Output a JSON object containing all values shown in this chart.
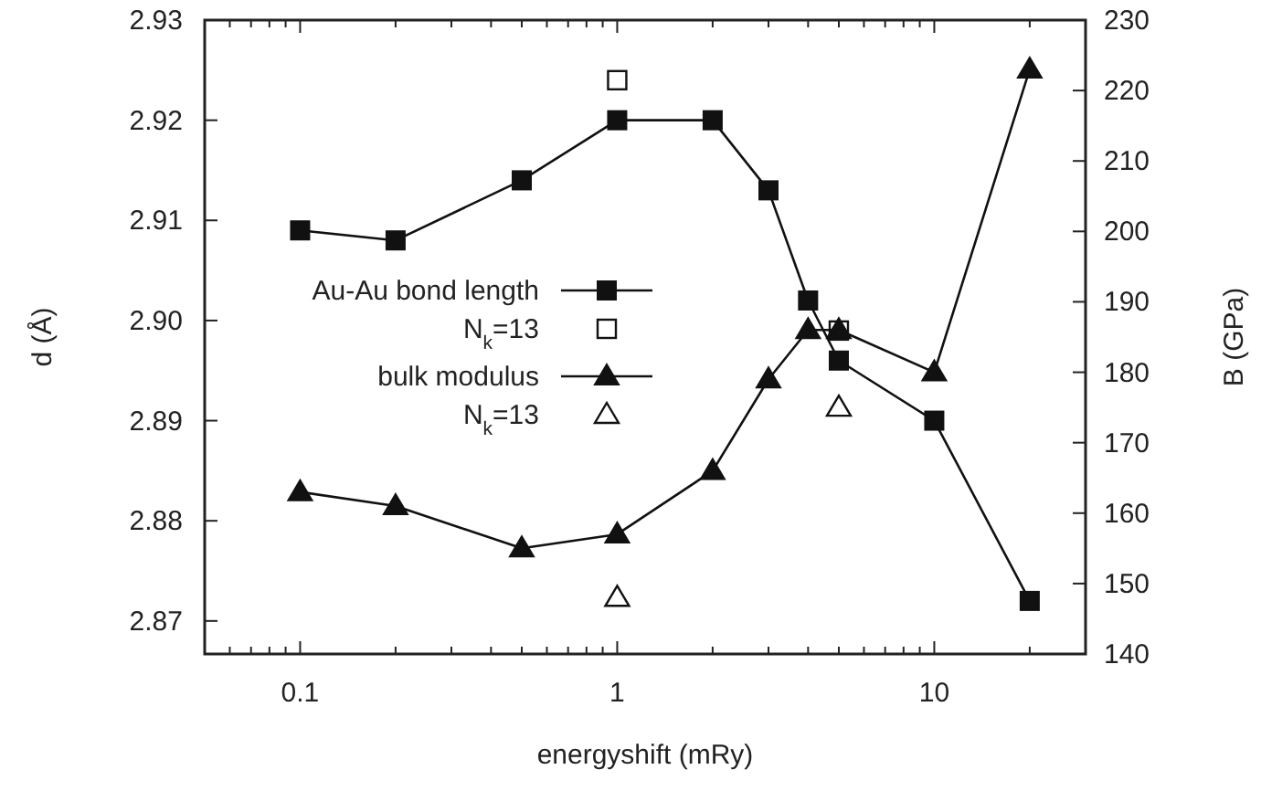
{
  "chart_data": {
    "type": "line",
    "xlabel": "energyshift (mRy)",
    "ylabel": "d (Å)",
    "y2label": "B (GPa)",
    "log": "x",
    "xlim": [
      0.05,
      30
    ],
    "xticks": [
      {
        "value": 0.06,
        "label": null
      },
      {
        "value": 0.07,
        "label": null
      },
      {
        "value": 0.08,
        "label": null
      },
      {
        "value": 0.09,
        "label": null
      },
      0.1,
      {
        "value": 0.2,
        "label": null
      },
      {
        "value": 0.3,
        "label": null
      },
      {
        "value": 0.4,
        "label": null
      },
      {
        "value": 0.5,
        "label": null
      },
      {
        "value": 0.6,
        "label": null
      },
      {
        "value": 0.7,
        "label": null
      },
      {
        "value": 0.8,
        "label": null
      },
      {
        "value": 0.9,
        "label": null
      },
      1,
      {
        "value": 2,
        "label": null
      },
      {
        "value": 3,
        "label": null
      },
      {
        "value": 4,
        "label": null
      },
      {
        "value": 5,
        "label": null
      },
      {
        "value": 6,
        "label": null
      },
      {
        "value": 7,
        "label": null
      },
      {
        "value": 8,
        "label": null
      },
      {
        "value": 9,
        "label": null
      },
      10,
      {
        "value": 20,
        "label": null
      }
    ],
    "ylim": [
      2.8667,
      2.93
    ],
    "yticks": [
      2.87,
      2.88,
      2.89,
      {
        "value": 2.9,
        "label": "2.90"
      },
      2.91,
      2.92,
      2.93
    ],
    "y2lim": [
      140,
      230
    ],
    "y2ticks": [
      140,
      150,
      160,
      170,
      180,
      190,
      200,
      210,
      220,
      230
    ],
    "grid": false,
    "legend": "left",
    "series": [
      {
        "name": "Au-Au bond length",
        "marker": "square",
        "color": "#111111",
        "x": [
          0.1,
          0.2,
          0.5,
          1,
          2,
          3,
          4,
          5,
          10,
          20
        ],
        "values": [
          2.909,
          2.908,
          2.914,
          2.92,
          2.92,
          2.913,
          2.902,
          2.896,
          2.89,
          2.872
        ]
      },
      {
        "name": "N$_{k}$=13",
        "type": "scatter",
        "marker": "square",
        "color": "#111111",
        "x": [
          1,
          5
        ],
        "values": [
          2.924,
          2.899
        ]
      },
      {
        "name": "bulk modulus",
        "marker": "triangle",
        "axis": "y2",
        "color": "#111111",
        "x": [
          0.1,
          0.2,
          0.5,
          1,
          2,
          3,
          4,
          5,
          10,
          20
        ],
        "values": [
          163,
          161,
          155,
          157,
          166,
          179,
          186,
          186,
          180,
          223
        ]
      },
      {
        "name": "N$_{k}$=13",
        "type": "scatter",
        "marker": "triangle",
        "axis": "y2",
        "color": "#111111",
        "x": [
          1,
          5
        ],
        "values": [
          148,
          175
        ]
      }
    ]
  }
}
